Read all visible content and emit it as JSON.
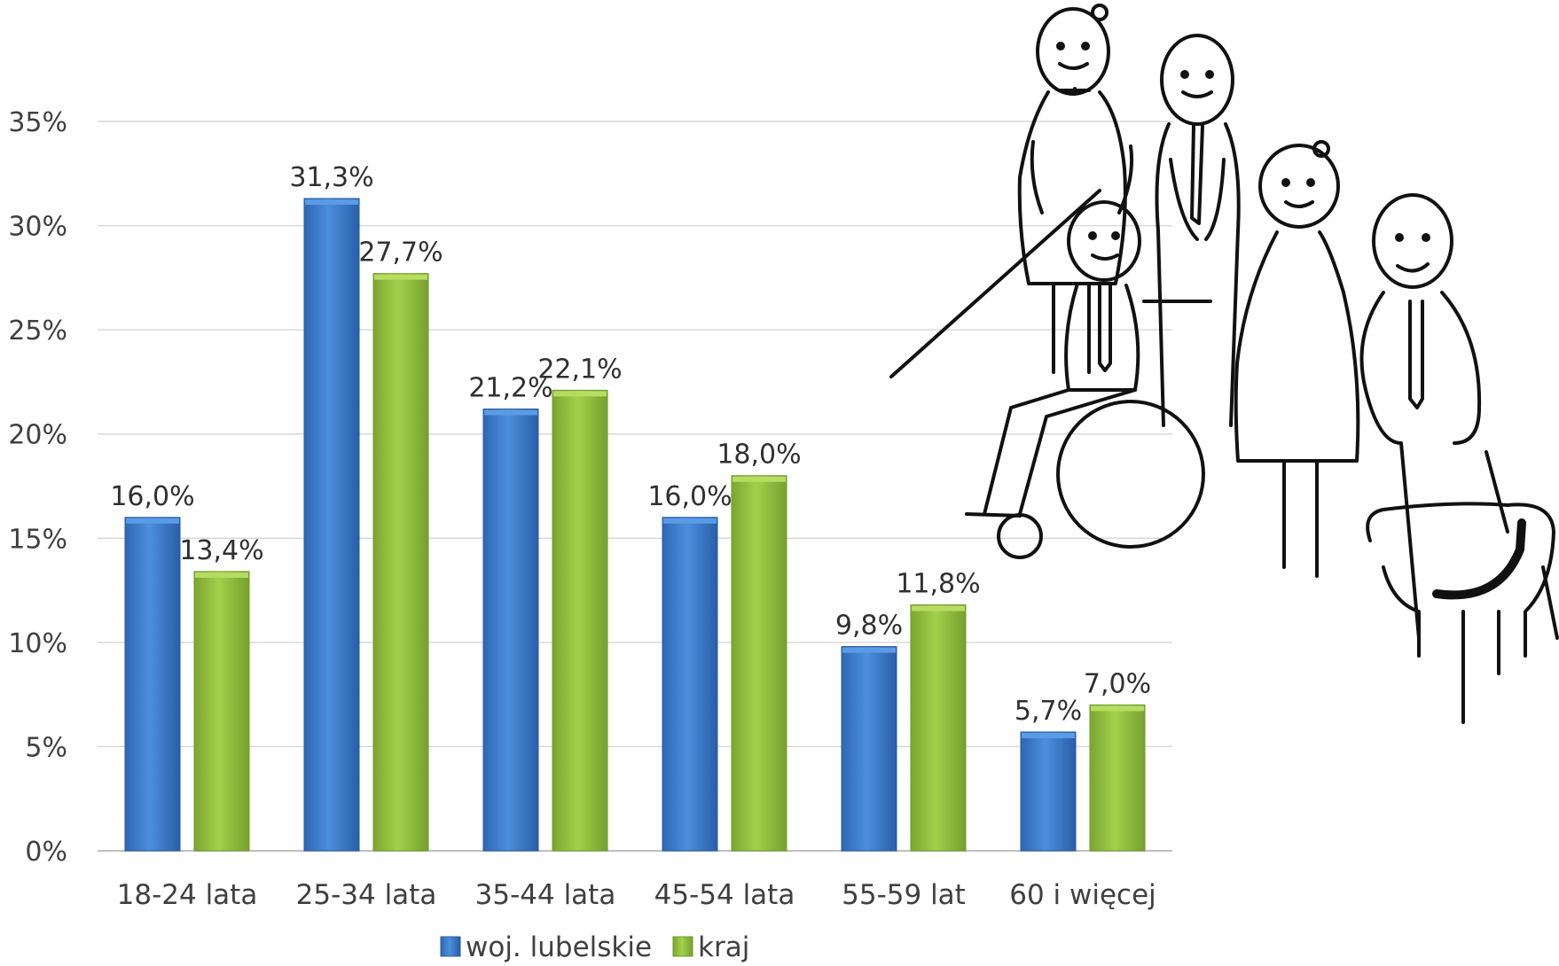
{
  "chart_data": {
    "type": "bar",
    "categories": [
      "18-24 lata",
      "25-34 lata",
      "35-44 lata",
      "45-54 lata",
      "55-59 lat",
      "60 i więcej"
    ],
    "series": [
      {
        "name": "woj. lubelskie",
        "color": "#3f7fcf",
        "values": [
          16.0,
          31.3,
          21.2,
          16.0,
          9.8,
          5.7
        ],
        "labels": [
          "16,0%",
          "31,3%",
          "21,2%",
          "16,0%",
          "9,8%",
          "5,7%"
        ]
      },
      {
        "name": "kraj",
        "color": "#92c13f",
        "values": [
          13.4,
          27.7,
          22.1,
          18.0,
          11.8,
          7.0
        ],
        "labels": [
          "13,4%",
          "27,7%",
          "22,1%",
          "18,0%",
          "11,8%",
          "7,0%"
        ]
      }
    ],
    "ylim": [
      0,
      35
    ],
    "yticks": [
      0,
      5,
      10,
      15,
      20,
      25,
      30,
      35
    ],
    "ytick_labels": [
      "0%",
      "5%",
      "10%",
      "15%",
      "20%",
      "25%",
      "30%",
      "35%"
    ],
    "grid": true,
    "legend_position": "bottom"
  },
  "illustration": {
    "icon": "people-with-disabilities-sketch-icon"
  }
}
